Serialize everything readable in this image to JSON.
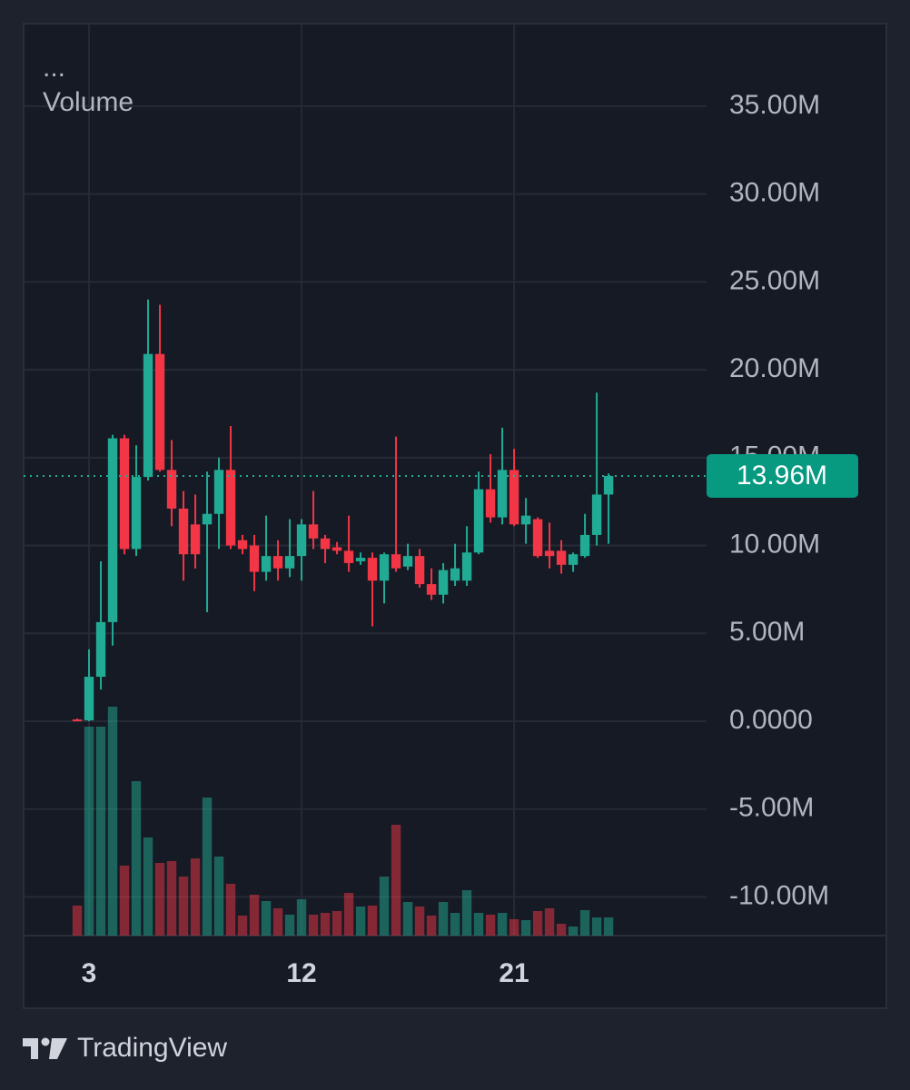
{
  "chart_data": {
    "type": "candlestick",
    "menu": "...",
    "volume_label": "Volume",
    "x": [
      2.5,
      3,
      3.5,
      4,
      4.5,
      5,
      5.5,
      6,
      6.5,
      7,
      7.5,
      8,
      8.5,
      9,
      9.5,
      10,
      10.5,
      11,
      11.5,
      12,
      12.5,
      13,
      13.5,
      14,
      14.5,
      15,
      15.5,
      16,
      16.5,
      17,
      17.5,
      18,
      18.5,
      19,
      19.5,
      20,
      20.5,
      21,
      21.5,
      22,
      22.5,
      23,
      23.5,
      24,
      24.5,
      25
    ],
    "open": [
      0.1,
      0.05,
      2.53,
      5.64,
      16.1,
      9.8,
      13.9,
      20.9,
      14.3,
      12.1,
      11.2,
      11.2,
      11.8,
      14.3,
      10.3,
      10.0,
      8.5,
      9.4,
      8.7,
      9.4,
      11.2,
      10.4,
      9.9,
      9.7,
      9.1,
      9.3,
      8.0,
      9.5,
      8.8,
      9.4,
      7.8,
      7.2,
      8.0,
      8.0,
      9.6,
      13.2,
      11.6,
      14.3,
      11.2,
      11.5,
      9.7,
      9.7,
      8.9,
      9.4,
      10.6,
      12.9
    ],
    "high": [
      0.15,
      4.09,
      9.1,
      16.3,
      16.3,
      15.7,
      24.0,
      23.7,
      16.0,
      13.1,
      12.9,
      14.2,
      15.0,
      16.8,
      10.6,
      10.6,
      11.7,
      10.3,
      11.5,
      11.5,
      13.1,
      10.6,
      10.2,
      11.7,
      9.6,
      9.6,
      9.6,
      16.2,
      10.1,
      9.8,
      8.7,
      9.0,
      10.1,
      11.1,
      14.2,
      15.2,
      16.7,
      15.5,
      12.7,
      11.6,
      11.3,
      10.3,
      9.6,
      11.8,
      18.7,
      14.1
    ],
    "low": [
      0,
      0,
      1.8,
      4.3,
      9.5,
      9.4,
      13.7,
      14.2,
      11.1,
      8.0,
      8.7,
      6.2,
      9.8,
      9.8,
      9.5,
      7.4,
      8.0,
      8.0,
      8.2,
      8.0,
      9.8,
      9.0,
      9.5,
      8.5,
      8.9,
      5.4,
      6.7,
      8.5,
      8.6,
      7.6,
      6.9,
      6.7,
      7.7,
      7.7,
      9.5,
      11.3,
      11.2,
      11.1,
      10.1,
      9.3,
      8.7,
      8.4,
      8.5,
      9.3,
      10.0,
      10.1
    ],
    "close": [
      0.05,
      2.53,
      5.64,
      16.1,
      9.8,
      13.9,
      20.9,
      14.3,
      12.1,
      9.5,
      9.5,
      11.8,
      14.3,
      10.0,
      9.8,
      8.5,
      9.4,
      8.7,
      9.4,
      11.2,
      10.4,
      9.8,
      9.7,
      9.0,
      9.3,
      8.0,
      9.5,
      8.7,
      9.4,
      7.8,
      7.2,
      8.6,
      8.7,
      9.6,
      13.2,
      11.6,
      14.3,
      11.2,
      11.7,
      9.4,
      9.4,
      8.9,
      9.5,
      10.6,
      12.9,
      13.96
    ],
    "volume": [
      33,
      230,
      230,
      252,
      77,
      170,
      108,
      80,
      82,
      65,
      85,
      152,
      87,
      57,
      22,
      45,
      38,
      30,
      23,
      40,
      23,
      25,
      27,
      47,
      32,
      33,
      65,
      122,
      37,
      32,
      22,
      37,
      25,
      50,
      25,
      23,
      25,
      18,
      17,
      27,
      30,
      13,
      10,
      28,
      20,
      20
    ],
    "last_label": "13.96M",
    "up_color": "#22ab94",
    "down_color": "#f23645",
    "xlim": [
      0.23,
      29.15
    ],
    "xticks": [
      3,
      12,
      21
    ],
    "ylim": [
      -12.2,
      39.7
    ],
    "yticks": [
      {
        "value": -10,
        "label": "-10.00M"
      },
      {
        "value": -5,
        "label": "-5.00M"
      },
      {
        "value": 0,
        "label": "0.0000"
      },
      {
        "value": 5,
        "label": "5.00M"
      },
      {
        "value": 10,
        "label": "10.00M"
      },
      {
        "value": 15,
        "label": "15.00M"
      },
      {
        "value": 20,
        "label": "20.00M"
      },
      {
        "value": 25,
        "label": "25.00M"
      },
      {
        "value": 30,
        "label": "30.00M"
      },
      {
        "value": 35,
        "label": "35.00M"
      }
    ],
    "grid": true
  },
  "footer": {
    "brand": "TradingView"
  }
}
